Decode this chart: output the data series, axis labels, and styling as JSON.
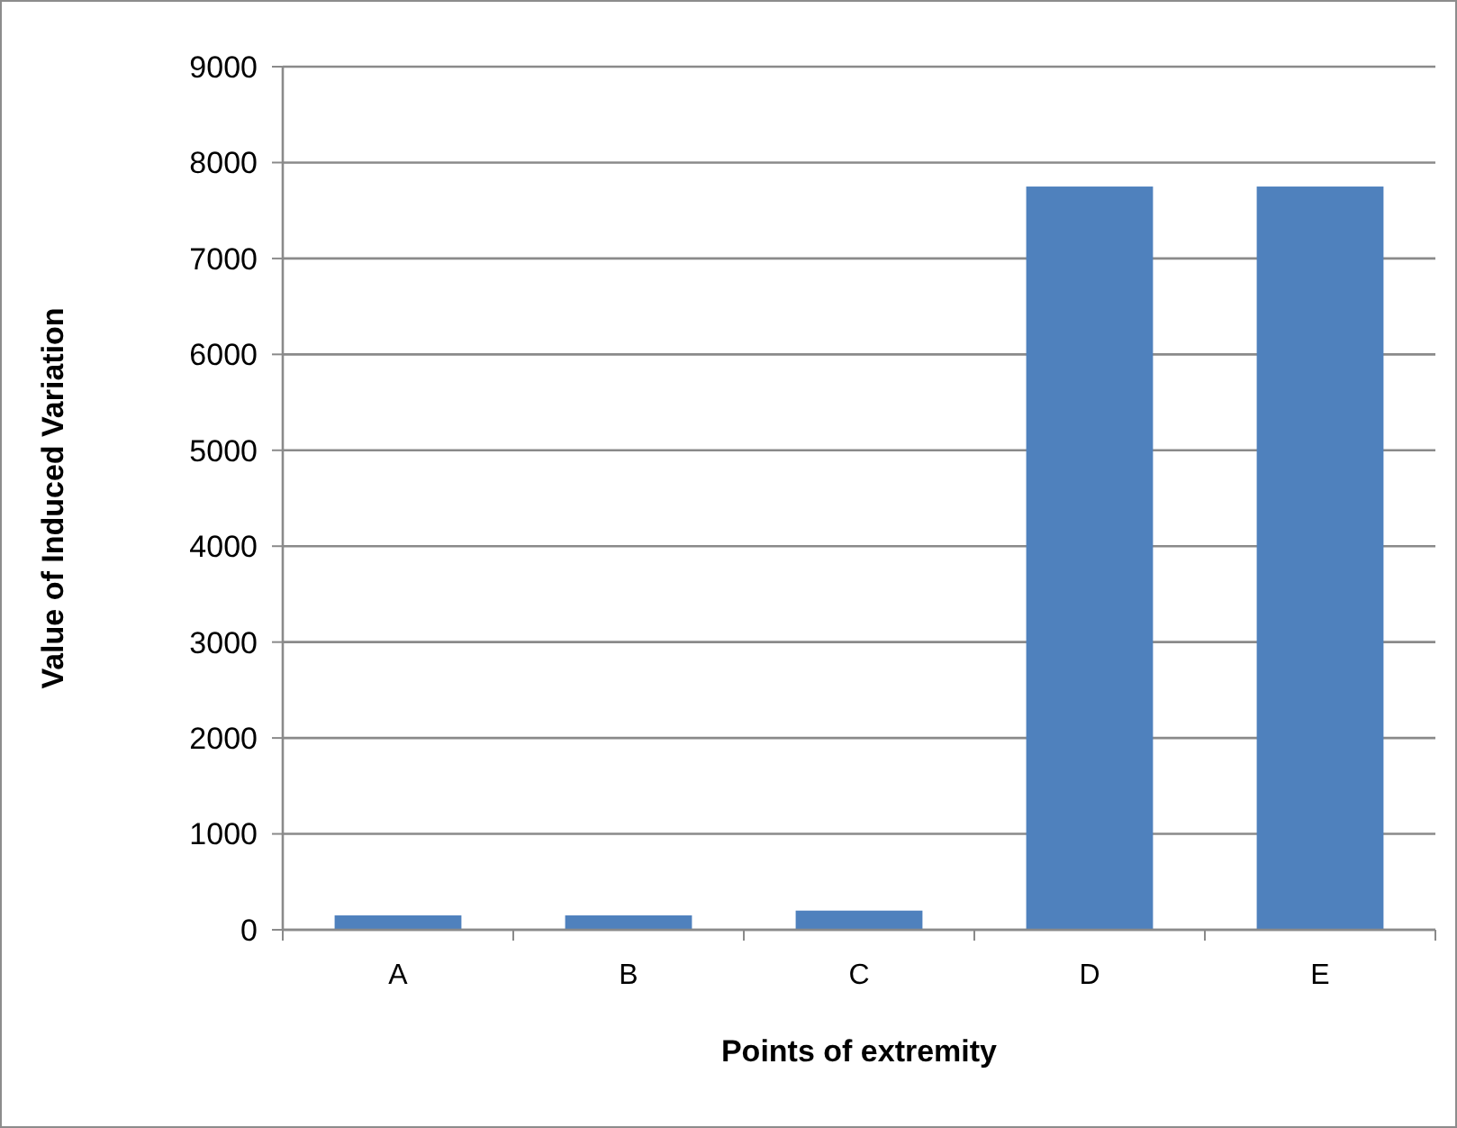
{
  "chart_data": {
    "type": "bar",
    "xlabel": "Points of extremity",
    "ylabel": "Value of Induced Variation",
    "categories": [
      "A",
      "B",
      "C",
      "D",
      "E"
    ],
    "values": [
      150,
      150,
      200,
      7750,
      7750
    ],
    "color": "#4f81bd",
    "ylim": [
      0,
      9000
    ],
    "yticks": [
      0,
      1000,
      2000,
      3000,
      4000,
      5000,
      6000,
      7000,
      8000,
      9000
    ],
    "grid": "y"
  }
}
